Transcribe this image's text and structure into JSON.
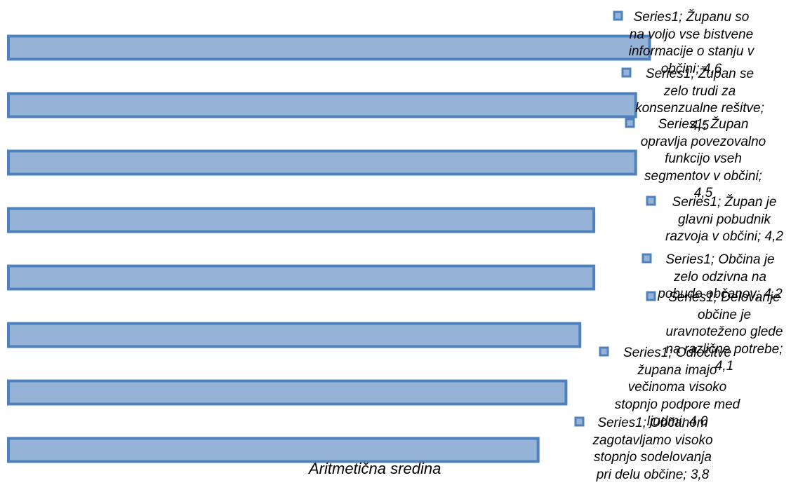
{
  "chart_data": {
    "type": "bar",
    "orientation": "horizontal",
    "series": [
      {
        "name": "Series1",
        "values": [
          4.6,
          4.5,
          4.5,
          4.2,
          4.2,
          4.1,
          4.0,
          3.8
        ]
      }
    ],
    "categories": [
      "Županu so na voljo vse bistvene informacije o stanju v občini",
      "Župan se zelo trudi za konsenzualne rešitve",
      "Župan opravlja povezovalno funkcijo vseh segmentov v občini",
      "Župan je glavni pobudnik razvoja v občini",
      "Občina je zelo odzivna na pobude občanov",
      "Delovanje občine je uravnoteženo glede na različne potrebe",
      "Odločitve župana imajo večinoma visoko stopnjo podpore med ljudmi",
      "Občanom zagotavljamo visoko stopnjo sodelovanja pri delu občine"
    ],
    "data_labels": [
      "Series1; Županu so na voljo vse bistvene informacije o stanju v občini; 4,6",
      "Series1; Župan se zelo trudi za konsenzualne rešitve; 4,5",
      "Series1; Župan opravlja povezovalno funkcijo vseh segmentov v občini; 4,5",
      "Series1; Župan je glavni pobudnik razvoja v občini; 4,2",
      "Series1; Občina je zelo odzivna na pobude občanov; 4,2",
      "Series1; Delovanje občine je uravnoteženo glede na različne potrebe; 4,1",
      "Series1; Odločitve župana imajo večinoma visoko stopnjo podpore med ljudmi; 4,0",
      "Series1; Občanom zagotavljamo visoko stopnjo sodelovanja pri delu občine; 3,8"
    ],
    "xlabel": "Aritmetična sredina",
    "ylabel": "",
    "title": "",
    "xlim": [
      0,
      5
    ],
    "grid": false,
    "legend": "none",
    "colors": {
      "bar_fill": "#95b3d7",
      "bar_stroke": "#4f81bd"
    }
  }
}
